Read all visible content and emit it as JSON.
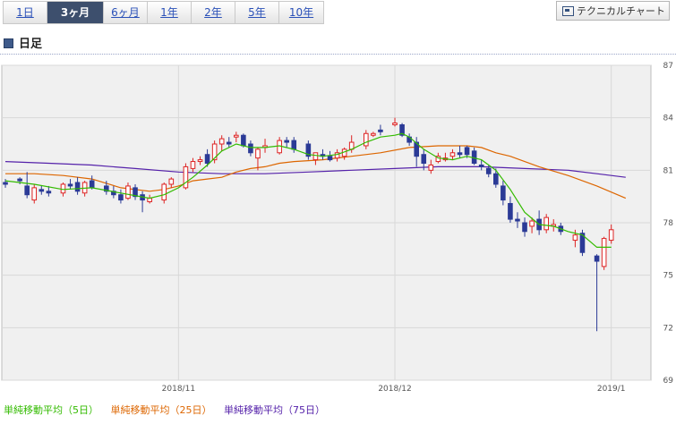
{
  "tabs": [
    {
      "label": "1日",
      "active": false
    },
    {
      "label": "3ヶ月",
      "active": true
    },
    {
      "label": "6ヶ月",
      "active": false
    },
    {
      "label": "1年",
      "active": false
    },
    {
      "label": "2年",
      "active": false
    },
    {
      "label": "5年",
      "active": false
    },
    {
      "label": "10年",
      "active": false
    }
  ],
  "technical_button": "テクニカルチャート",
  "section_title": "日足",
  "legend": [
    {
      "label": "単純移動平均（5日）",
      "color": "#33bb00"
    },
    {
      "label": "単純移動平均（25日）",
      "color": "#dd6600"
    },
    {
      "label": "単純移動平均（75日）",
      "color": "#5522aa"
    }
  ],
  "colors": {
    "up": "#dd2222",
    "down": "#2b3a96",
    "grid": "#d8d8d8",
    "plot_bg": "#f0f0f0"
  },
  "chart_data": {
    "type": "candlestick",
    "ylim": [
      69,
      87
    ],
    "yticks": [
      69,
      72,
      75,
      78,
      81,
      84,
      87
    ],
    "xticks": [
      {
        "index": 24,
        "label": "2018/11"
      },
      {
        "index": 54,
        "label": "2018/12"
      },
      {
        "index": 84,
        "label": "2019/1"
      }
    ],
    "n_slots": 90,
    "candles": [
      [
        0,
        80.3,
        80.5,
        80.0,
        80.2
      ],
      [
        2,
        80.5,
        80.6,
        80.2,
        80.4
      ],
      [
        3,
        80.1,
        80.9,
        79.4,
        79.6
      ],
      [
        4,
        79.3,
        80.2,
        79.1,
        80.0
      ],
      [
        5,
        79.9,
        80.1,
        79.6,
        79.8
      ],
      [
        6,
        79.8,
        80.1,
        79.5,
        79.7
      ],
      [
        8,
        79.7,
        80.3,
        79.5,
        80.2
      ],
      [
        9,
        80.2,
        80.5,
        79.9,
        80.1
      ],
      [
        10,
        80.3,
        80.6,
        79.6,
        79.8
      ],
      [
        11,
        79.7,
        80.4,
        79.5,
        80.3
      ],
      [
        12,
        80.4,
        80.7,
        79.9,
        80.0
      ],
      [
        14,
        80.1,
        80.4,
        79.6,
        79.8
      ],
      [
        15,
        79.8,
        80.1,
        79.4,
        79.6
      ],
      [
        16,
        79.6,
        79.9,
        79.1,
        79.3
      ],
      [
        17,
        79.4,
        80.3,
        79.3,
        80.1
      ],
      [
        18,
        80.0,
        80.2,
        79.3,
        79.5
      ],
      [
        19,
        79.6,
        79.8,
        78.6,
        79.3
      ],
      [
        20,
        79.2,
        79.6,
        79.1,
        79.4
      ],
      [
        22,
        79.3,
        80.3,
        79.1,
        80.2
      ],
      [
        23,
        80.2,
        80.6,
        80.0,
        80.5
      ],
      [
        25,
        80.0,
        81.4,
        79.9,
        81.2
      ],
      [
        26,
        81.1,
        81.7,
        80.9,
        81.5
      ],
      [
        27,
        81.5,
        81.8,
        81.3,
        81.6
      ],
      [
        28,
        81.9,
        82.2,
        81.2,
        81.4
      ],
      [
        29,
        81.6,
        82.7,
        81.4,
        82.5
      ],
      [
        30,
        82.5,
        83.0,
        82.1,
        82.8
      ],
      [
        31,
        82.6,
        82.9,
        82.3,
        82.5
      ],
      [
        32,
        82.9,
        83.2,
        82.6,
        83.0
      ],
      [
        33,
        83.0,
        83.1,
        82.3,
        82.4
      ],
      [
        34,
        82.5,
        82.7,
        81.8,
        82.0
      ],
      [
        35,
        81.7,
        82.3,
        81.0,
        82.2
      ],
      [
        36,
        82.3,
        82.8,
        82.0,
        82.4
      ],
      [
        38,
        82.0,
        82.9,
        81.9,
        82.7
      ],
      [
        39,
        82.7,
        82.9,
        82.3,
        82.6
      ],
      [
        40,
        82.7,
        82.9,
        82.0,
        82.2
      ],
      [
        42,
        82.5,
        82.7,
        81.6,
        81.8
      ],
      [
        43,
        81.6,
        82.0,
        81.3,
        82.0
      ],
      [
        44,
        81.9,
        82.2,
        81.6,
        81.8
      ],
      [
        45,
        81.8,
        82.1,
        81.5,
        81.6
      ],
      [
        46,
        81.7,
        82.2,
        81.5,
        82.0
      ],
      [
        47,
        81.8,
        82.3,
        81.6,
        82.2
      ],
      [
        48,
        82.2,
        83.0,
        82.0,
        82.6
      ],
      [
        50,
        82.4,
        83.3,
        82.2,
        83.1
      ],
      [
        51,
        83.0,
        83.2,
        82.9,
        83.1
      ],
      [
        52,
        83.3,
        83.6,
        83.0,
        83.2
      ],
      [
        54,
        83.6,
        84.0,
        83.5,
        83.7
      ],
      [
        55,
        83.6,
        83.7,
        82.9,
        83.0
      ],
      [
        56,
        82.9,
        83.1,
        82.4,
        82.6
      ],
      [
        57,
        82.6,
        82.9,
        81.2,
        81.8
      ],
      [
        58,
        81.9,
        82.2,
        81.0,
        81.4
      ],
      [
        59,
        81.0,
        81.6,
        80.8,
        81.3
      ],
      [
        60,
        81.5,
        82.0,
        81.4,
        81.8
      ],
      [
        61,
        81.6,
        82.0,
        81.5,
        81.7
      ],
      [
        62,
        81.8,
        82.2,
        81.6,
        82.0
      ],
      [
        63,
        82.0,
        82.4,
        81.7,
        81.9
      ],
      [
        64,
        82.3,
        82.4,
        81.7,
        81.9
      ],
      [
        65,
        82.1,
        82.3,
        81.3,
        81.4
      ],
      [
        66,
        81.3,
        81.6,
        81.0,
        81.2
      ],
      [
        67,
        81.1,
        81.3,
        80.6,
        80.8
      ],
      [
        68,
        80.8,
        81.1,
        80.0,
        80.2
      ],
      [
        69,
        80.1,
        80.4,
        79.0,
        79.3
      ],
      [
        70,
        79.1,
        79.5,
        78.0,
        78.2
      ],
      [
        71,
        78.2,
        78.6,
        77.7,
        78.1
      ],
      [
        72,
        78.0,
        78.3,
        77.2,
        77.5
      ],
      [
        73,
        77.8,
        78.3,
        77.4,
        78.1
      ],
      [
        74,
        78.2,
        78.7,
        77.3,
        77.6
      ],
      [
        75,
        77.6,
        78.5,
        77.4,
        78.3
      ],
      [
        76,
        77.8,
        78.2,
        77.5,
        77.9
      ],
      [
        77,
        77.8,
        78.0,
        77.3,
        77.5
      ],
      [
        79,
        77.0,
        77.6,
        76.6,
        77.3
      ],
      [
        80,
        77.4,
        77.6,
        76.1,
        76.3
      ],
      [
        82,
        76.1,
        76.2,
        71.8,
        75.8
      ],
      [
        83,
        75.5,
        77.2,
        75.3,
        77.1
      ],
      [
        84,
        77.0,
        77.9,
        76.8,
        77.6
      ]
    ],
    "ma5": [
      [
        0,
        80.4
      ],
      [
        4,
        80.2
      ],
      [
        8,
        79.9
      ],
      [
        12,
        80.0
      ],
      [
        16,
        79.7
      ],
      [
        20,
        79.4
      ],
      [
        22,
        79.6
      ],
      [
        24,
        80.0
      ],
      [
        26,
        80.6
      ],
      [
        28,
        81.3
      ],
      [
        30,
        82.1
      ],
      [
        32,
        82.5
      ],
      [
        34,
        82.3
      ],
      [
        36,
        82.3
      ],
      [
        38,
        82.4
      ],
      [
        40,
        82.2
      ],
      [
        42,
        81.9
      ],
      [
        44,
        81.8
      ],
      [
        46,
        81.9
      ],
      [
        48,
        82.2
      ],
      [
        50,
        82.6
      ],
      [
        52,
        82.9
      ],
      [
        54,
        83.0
      ],
      [
        55,
        83.1
      ],
      [
        56,
        82.9
      ],
      [
        58,
        82.2
      ],
      [
        60,
        81.7
      ],
      [
        62,
        81.6
      ],
      [
        64,
        81.8
      ],
      [
        66,
        81.6
      ],
      [
        68,
        81.0
      ],
      [
        70,
        79.9
      ],
      [
        72,
        78.6
      ],
      [
        74,
        77.9
      ],
      [
        76,
        77.8
      ],
      [
        78,
        77.5
      ],
      [
        80,
        77.3
      ],
      [
        82,
        76.6
      ],
      [
        84,
        76.6
      ]
    ],
    "ma25": [
      [
        0,
        80.8
      ],
      [
        4,
        80.8
      ],
      [
        8,
        80.7
      ],
      [
        12,
        80.5
      ],
      [
        16,
        80.0
      ],
      [
        20,
        79.8
      ],
      [
        22,
        79.9
      ],
      [
        24,
        80.1
      ],
      [
        26,
        80.4
      ],
      [
        28,
        80.5
      ],
      [
        30,
        80.6
      ],
      [
        32,
        80.9
      ],
      [
        34,
        81.1
      ],
      [
        36,
        81.2
      ],
      [
        38,
        81.4
      ],
      [
        40,
        81.5
      ],
      [
        44,
        81.6
      ],
      [
        48,
        81.8
      ],
      [
        52,
        82.0
      ],
      [
        56,
        82.3
      ],
      [
        60,
        82.4
      ],
      [
        64,
        82.4
      ],
      [
        66,
        82.3
      ],
      [
        68,
        82.0
      ],
      [
        70,
        81.8
      ],
      [
        74,
        81.2
      ],
      [
        78,
        80.7
      ],
      [
        82,
        80.1
      ],
      [
        86,
        79.4
      ]
    ],
    "ma75": [
      [
        0,
        81.5
      ],
      [
        6,
        81.4
      ],
      [
        12,
        81.3
      ],
      [
        18,
        81.1
      ],
      [
        24,
        80.9
      ],
      [
        30,
        80.8
      ],
      [
        36,
        80.8
      ],
      [
        42,
        80.9
      ],
      [
        48,
        81.0
      ],
      [
        54,
        81.1
      ],
      [
        60,
        81.2
      ],
      [
        66,
        81.2
      ],
      [
        72,
        81.1
      ],
      [
        78,
        81.0
      ],
      [
        82,
        80.8
      ],
      [
        86,
        80.6
      ]
    ]
  }
}
